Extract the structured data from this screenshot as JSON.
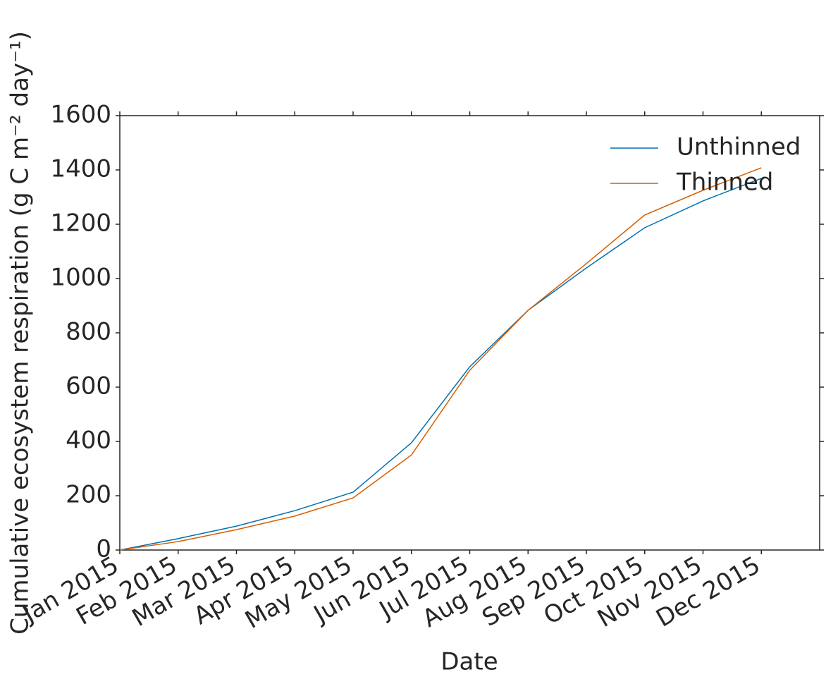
{
  "chart_data": {
    "type": "line",
    "x": [
      "Jan 2015",
      "Feb 2015",
      "Mar 2015",
      "Apr 2015",
      "May 2015",
      "Jun 2015",
      "Jul 2015",
      "Aug 2015",
      "Sep 2015",
      "Oct 2015",
      "Nov 2015",
      "Dec 2015"
    ],
    "series": [
      {
        "name": "Unthinned",
        "color": "#0072b2",
        "values": [
          0,
          42,
          88,
          145,
          213,
          395,
          675,
          883,
          1039,
          1187,
          1286,
          1369
        ]
      },
      {
        "name": "Thinned",
        "color": "#d55e00",
        "values": [
          0,
          31,
          75,
          125,
          192,
          350,
          662,
          883,
          1055,
          1234,
          1325,
          1408
        ]
      }
    ],
    "x_label": "Date",
    "y_label": "Cumulative ecosystem respiration (g C m⁻² day⁻¹)",
    "ylim": [
      0,
      1600
    ],
    "yticks": [
      0,
      200,
      400,
      600,
      800,
      1000,
      1200,
      1400,
      1600
    ],
    "legend": "upper right",
    "grid": false
  }
}
